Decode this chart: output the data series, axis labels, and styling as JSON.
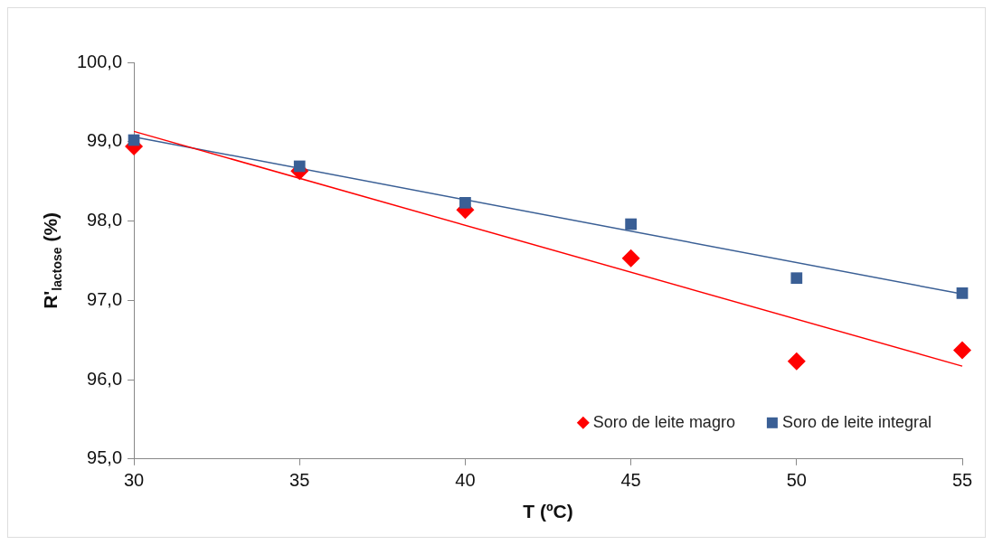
{
  "chart_data": {
    "type": "scatter",
    "xlabel": "T (ºC)",
    "ylabel": "R'$_{lactose}$ (%)",
    "xlim": [
      30,
      55
    ],
    "xticks": [
      30,
      35,
      40,
      45,
      50,
      55
    ],
    "ylim": [
      95,
      100
    ],
    "yticks": [
      {
        "value": 95,
        "label": "95,0"
      },
      {
        "value": 96,
        "label": "96,0"
      },
      {
        "value": 97,
        "label": "97,0"
      },
      {
        "value": 98,
        "label": "98,0"
      },
      {
        "value": 99,
        "label": "99,0"
      },
      {
        "value": 100,
        "label": "100,0"
      }
    ],
    "grid": false,
    "legend": "bottom right",
    "x": [
      30,
      35,
      40,
      45,
      50,
      55
    ],
    "series": [
      {
        "name": "Soro de leite magro",
        "color": "#ff0000",
        "marker": "diamond",
        "values": [
          98.94,
          98.63,
          98.14,
          97.53,
          96.23,
          96.37
        ]
      },
      {
        "name": "Soro de leite integral",
        "color": "#3a5f95",
        "marker": "square",
        "values": [
          99.02,
          98.69,
          98.23,
          97.96,
          97.28,
          97.09
        ]
      },
      {
        "type": "line",
        "color": "#ff0000",
        "marker": "none",
        "values": [
          99.13,
          null,
          null,
          null,
          null,
          96.17
        ]
      },
      {
        "type": "line",
        "color": "#3a5f95",
        "marker": "none",
        "values": [
          99.06,
          null,
          null,
          null,
          null,
          97.08
        ]
      }
    ]
  }
}
